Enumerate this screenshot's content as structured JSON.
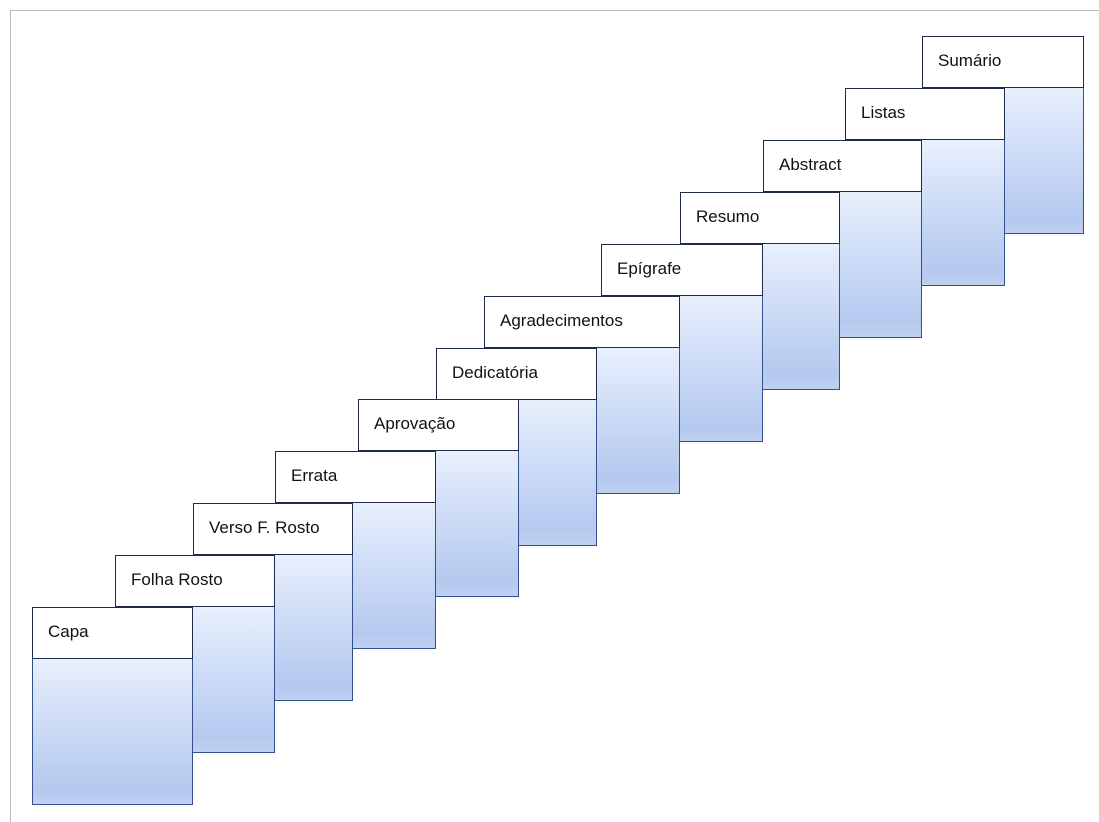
{
  "diagram": {
    "steps": [
      {
        "label": "Capa"
      },
      {
        "label": "Folha Rosto"
      },
      {
        "label": "Verso F. Rosto"
      },
      {
        "label": "Errata"
      },
      {
        "label": "Aprovação"
      },
      {
        "label": "Dedicatória"
      },
      {
        "label": "Agradecimentos"
      },
      {
        "label": "Epígrafe"
      },
      {
        "label": "Resumo"
      },
      {
        "label": "Abstract"
      },
      {
        "label": "Listas"
      },
      {
        "label": "Sumário"
      }
    ]
  }
}
